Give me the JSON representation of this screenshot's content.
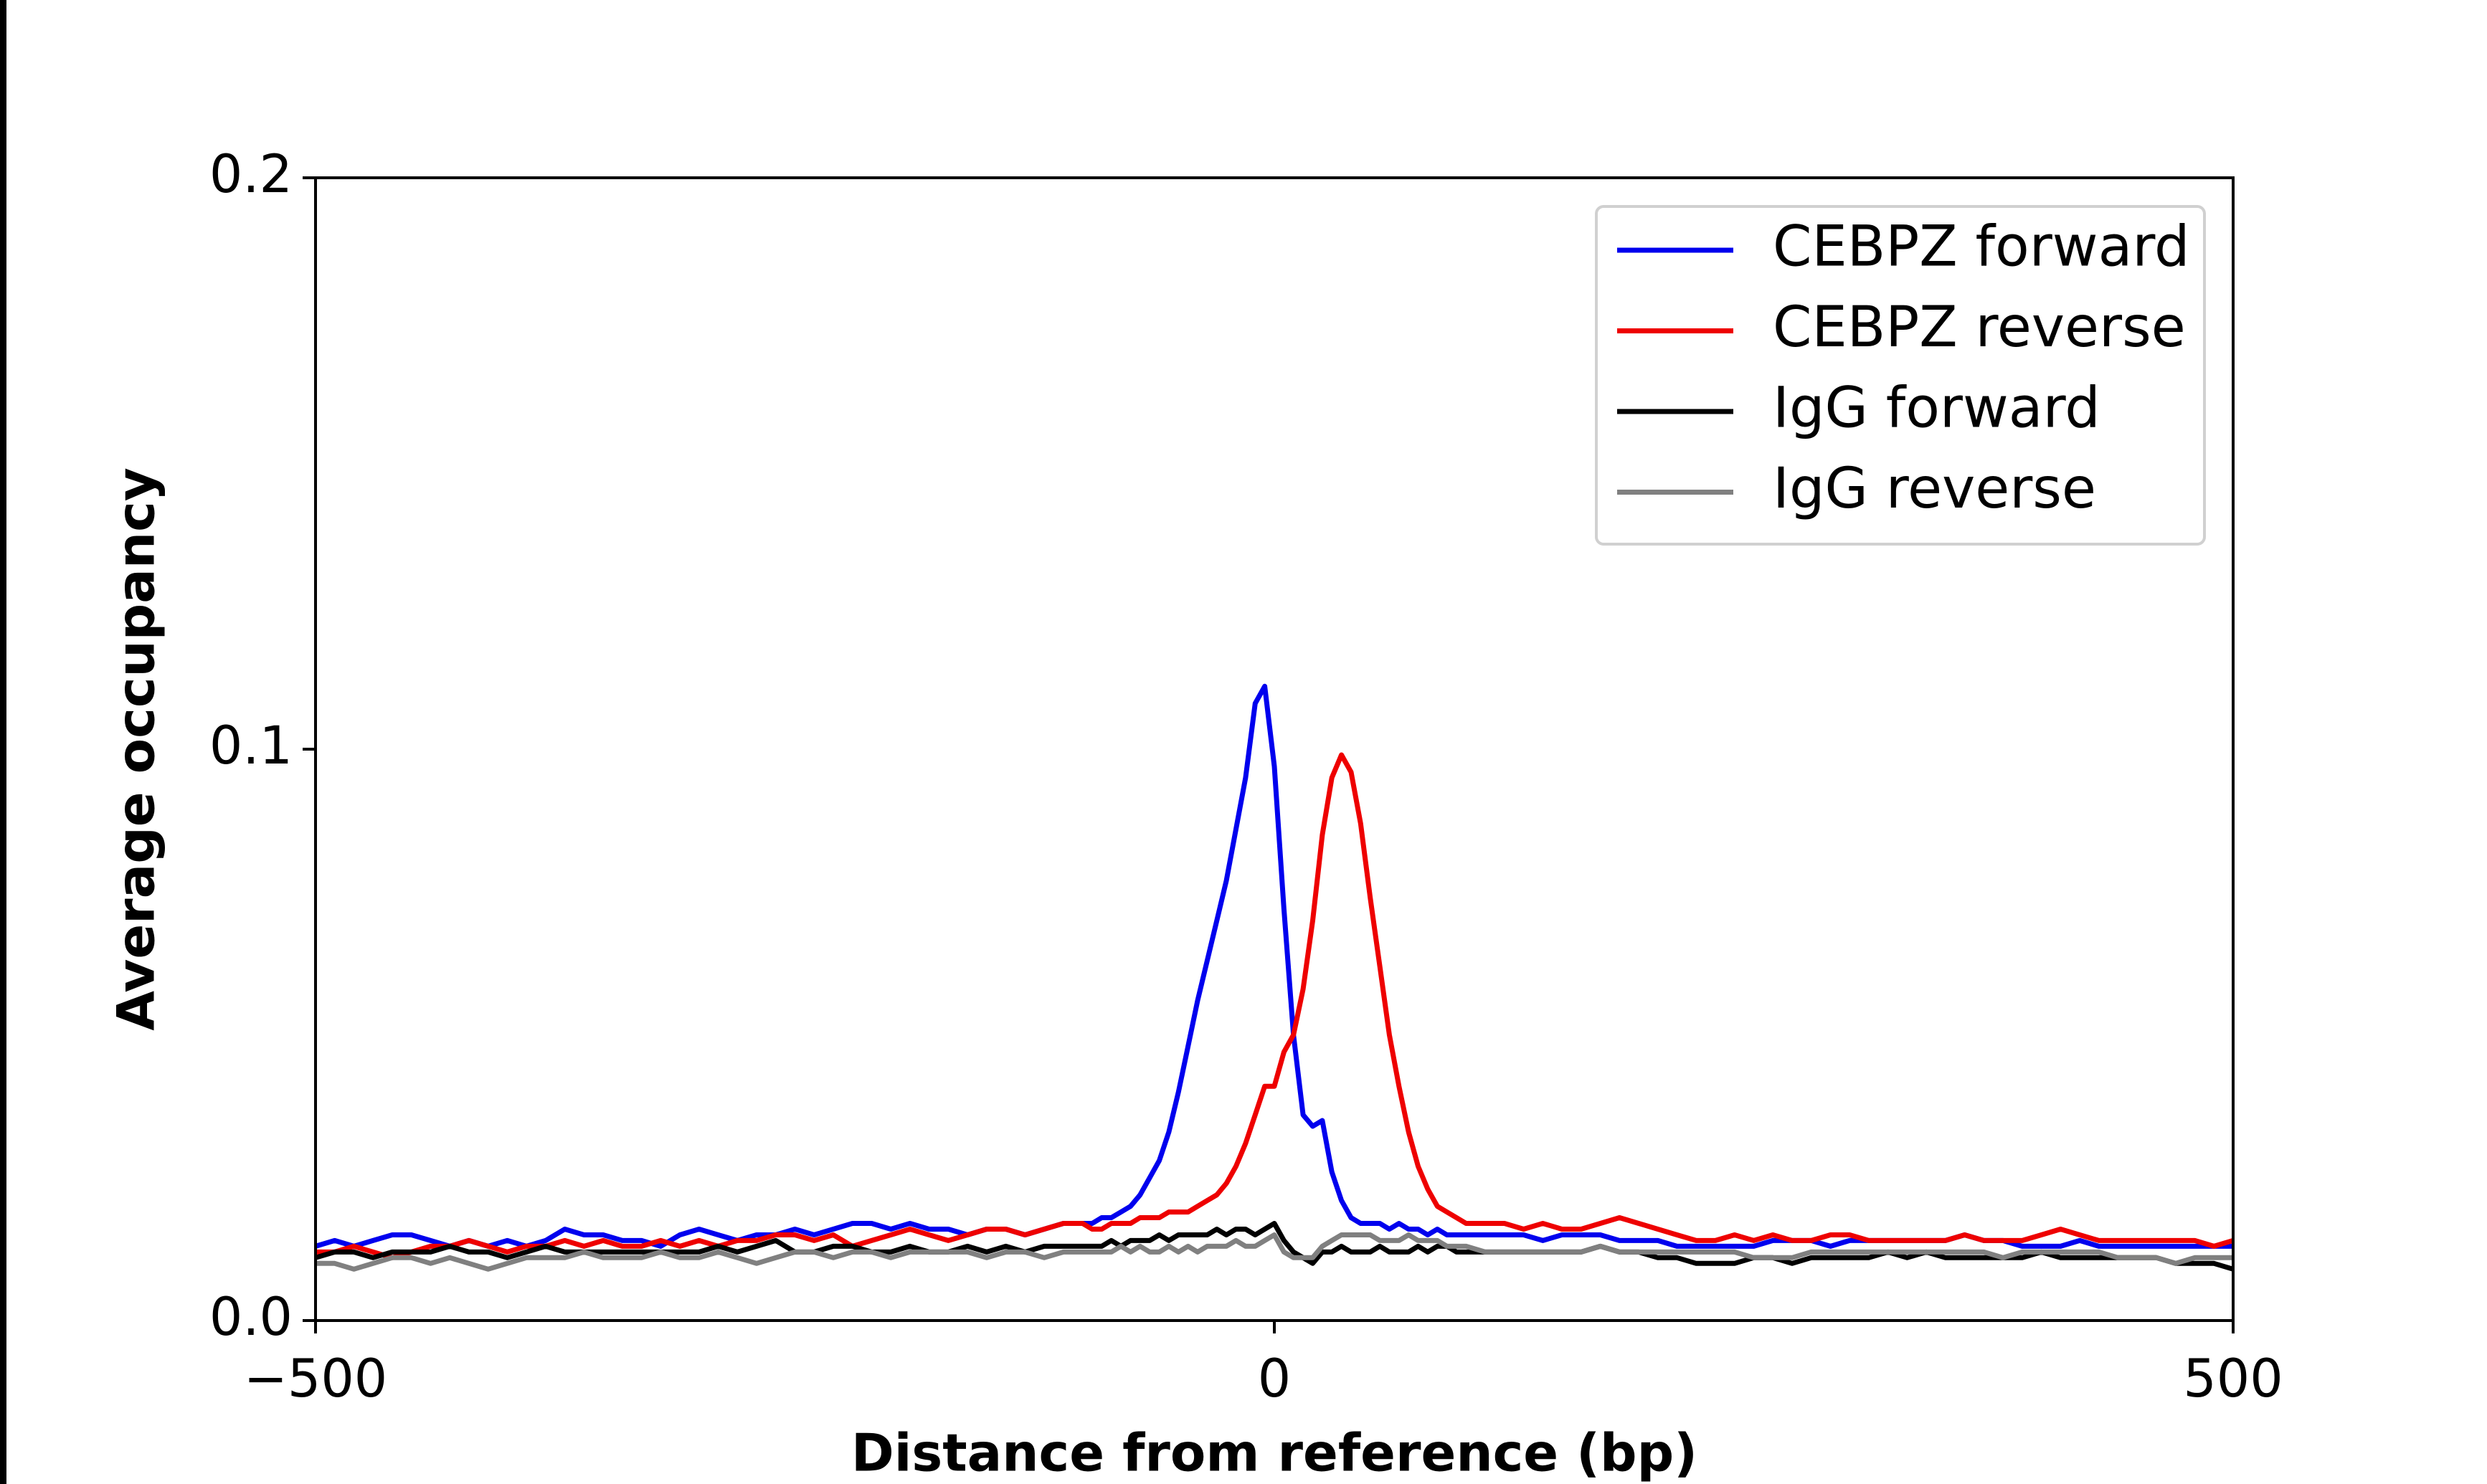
{
  "chart_data": {
    "type": "line",
    "xlabel": "Distance from reference (bp)",
    "ylabel": "Average occupancy",
    "x": [
      -500,
      -490,
      -480,
      -470,
      -460,
      -450,
      -440,
      -430,
      -420,
      -410,
      -400,
      -390,
      -380,
      -370,
      -360,
      -350,
      -340,
      -330,
      -320,
      -310,
      -300,
      -290,
      -280,
      -270,
      -260,
      -250,
      -240,
      -230,
      -220,
      -210,
      -200,
      -190,
      -180,
      -170,
      -160,
      -150,
      -140,
      -130,
      -120,
      -110,
      -100,
      -95,
      -90,
      -85,
      -80,
      -75,
      -70,
      -65,
      -60,
      -55,
      -50,
      -45,
      -40,
      -35,
      -30,
      -25,
      -20,
      -15,
      -10,
      -5,
      0,
      5,
      10,
      15,
      20,
      25,
      30,
      35,
      40,
      45,
      50,
      55,
      60,
      65,
      70,
      75,
      80,
      85,
      90,
      95,
      100,
      110,
      120,
      130,
      140,
      150,
      160,
      170,
      180,
      190,
      200,
      210,
      220,
      230,
      240,
      250,
      260,
      270,
      280,
      290,
      300,
      310,
      320,
      330,
      340,
      350,
      360,
      370,
      380,
      390,
      400,
      410,
      420,
      430,
      440,
      450,
      460,
      470,
      480,
      490,
      500
    ],
    "series": [
      {
        "name": "CEBPZ forward",
        "color": "#0000ee",
        "values": [
          0.013,
          0.014,
          0.013,
          0.014,
          0.015,
          0.015,
          0.014,
          0.013,
          0.014,
          0.013,
          0.014,
          0.013,
          0.014,
          0.016,
          0.015,
          0.015,
          0.014,
          0.014,
          0.013,
          0.015,
          0.016,
          0.015,
          0.014,
          0.015,
          0.015,
          0.016,
          0.015,
          0.016,
          0.017,
          0.017,
          0.016,
          0.017,
          0.016,
          0.016,
          0.015,
          0.016,
          0.016,
          0.015,
          0.016,
          0.017,
          0.017,
          0.017,
          0.018,
          0.018,
          0.019,
          0.02,
          0.022,
          0.025,
          0.028,
          0.033,
          0.04,
          0.048,
          0.056,
          0.063,
          0.07,
          0.077,
          0.086,
          0.095,
          0.108,
          0.111,
          0.097,
          0.072,
          0.05,
          0.036,
          0.034,
          0.035,
          0.026,
          0.021,
          0.018,
          0.017,
          0.017,
          0.017,
          0.016,
          0.017,
          0.016,
          0.016,
          0.015,
          0.016,
          0.015,
          0.015,
          0.015,
          0.015,
          0.015,
          0.015,
          0.014,
          0.015,
          0.015,
          0.015,
          0.014,
          0.014,
          0.014,
          0.013,
          0.013,
          0.013,
          0.013,
          0.013,
          0.014,
          0.014,
          0.014,
          0.013,
          0.014,
          0.014,
          0.014,
          0.014,
          0.014,
          0.014,
          0.015,
          0.014,
          0.014,
          0.013,
          0.013,
          0.013,
          0.014,
          0.013,
          0.013,
          0.013,
          0.013,
          0.013,
          0.013,
          0.013,
          0.013
        ]
      },
      {
        "name": "CEBPZ reverse",
        "color": "#ee0000",
        "values": [
          0.012,
          0.012,
          0.013,
          0.012,
          0.011,
          0.012,
          0.013,
          0.013,
          0.014,
          0.013,
          0.012,
          0.013,
          0.013,
          0.014,
          0.013,
          0.014,
          0.013,
          0.013,
          0.014,
          0.013,
          0.014,
          0.013,
          0.014,
          0.014,
          0.015,
          0.015,
          0.014,
          0.015,
          0.013,
          0.014,
          0.015,
          0.016,
          0.015,
          0.014,
          0.015,
          0.016,
          0.016,
          0.015,
          0.016,
          0.017,
          0.017,
          0.016,
          0.016,
          0.017,
          0.017,
          0.017,
          0.018,
          0.018,
          0.018,
          0.019,
          0.019,
          0.019,
          0.02,
          0.021,
          0.022,
          0.024,
          0.027,
          0.031,
          0.036,
          0.041,
          0.041,
          0.047,
          0.05,
          0.058,
          0.07,
          0.085,
          0.095,
          0.099,
          0.096,
          0.087,
          0.074,
          0.062,
          0.05,
          0.041,
          0.033,
          0.027,
          0.023,
          0.02,
          0.019,
          0.018,
          0.017,
          0.017,
          0.017,
          0.016,
          0.017,
          0.016,
          0.016,
          0.017,
          0.018,
          0.017,
          0.016,
          0.015,
          0.014,
          0.014,
          0.015,
          0.014,
          0.015,
          0.014,
          0.014,
          0.015,
          0.015,
          0.014,
          0.014,
          0.014,
          0.014,
          0.014,
          0.015,
          0.014,
          0.014,
          0.014,
          0.015,
          0.016,
          0.015,
          0.014,
          0.014,
          0.014,
          0.014,
          0.014,
          0.014,
          0.013,
          0.014
        ]
      },
      {
        "name": "IgG forward",
        "color": "#000000",
        "values": [
          0.011,
          0.012,
          0.012,
          0.011,
          0.012,
          0.012,
          0.012,
          0.013,
          0.012,
          0.012,
          0.011,
          0.012,
          0.013,
          0.012,
          0.012,
          0.012,
          0.012,
          0.012,
          0.012,
          0.012,
          0.012,
          0.013,
          0.012,
          0.013,
          0.014,
          0.012,
          0.012,
          0.013,
          0.013,
          0.012,
          0.012,
          0.013,
          0.012,
          0.012,
          0.013,
          0.012,
          0.013,
          0.012,
          0.013,
          0.013,
          0.013,
          0.013,
          0.013,
          0.014,
          0.013,
          0.014,
          0.014,
          0.014,
          0.015,
          0.014,
          0.015,
          0.015,
          0.015,
          0.015,
          0.016,
          0.015,
          0.016,
          0.016,
          0.015,
          0.016,
          0.017,
          0.014,
          0.012,
          0.011,
          0.01,
          0.012,
          0.012,
          0.013,
          0.012,
          0.012,
          0.012,
          0.013,
          0.012,
          0.012,
          0.012,
          0.013,
          0.012,
          0.013,
          0.013,
          0.012,
          0.012,
          0.012,
          0.012,
          0.012,
          0.012,
          0.012,
          0.012,
          0.013,
          0.012,
          0.012,
          0.011,
          0.011,
          0.01,
          0.01,
          0.01,
          0.011,
          0.011,
          0.01,
          0.011,
          0.011,
          0.011,
          0.011,
          0.012,
          0.011,
          0.012,
          0.011,
          0.011,
          0.011,
          0.011,
          0.011,
          0.012,
          0.011,
          0.011,
          0.011,
          0.011,
          0.011,
          0.011,
          0.01,
          0.01,
          0.01,
          0.009
        ]
      },
      {
        "name": "IgG reverse",
        "color": "#808080",
        "values": [
          0.01,
          0.01,
          0.009,
          0.01,
          0.011,
          0.011,
          0.01,
          0.011,
          0.01,
          0.009,
          0.01,
          0.011,
          0.011,
          0.011,
          0.012,
          0.011,
          0.011,
          0.011,
          0.012,
          0.011,
          0.011,
          0.012,
          0.011,
          0.01,
          0.011,
          0.012,
          0.012,
          0.011,
          0.012,
          0.012,
          0.011,
          0.012,
          0.012,
          0.012,
          0.012,
          0.011,
          0.012,
          0.012,
          0.011,
          0.012,
          0.012,
          0.012,
          0.012,
          0.012,
          0.013,
          0.012,
          0.013,
          0.012,
          0.012,
          0.013,
          0.012,
          0.013,
          0.012,
          0.013,
          0.013,
          0.013,
          0.014,
          0.013,
          0.013,
          0.014,
          0.015,
          0.012,
          0.011,
          0.011,
          0.011,
          0.013,
          0.014,
          0.015,
          0.015,
          0.015,
          0.015,
          0.014,
          0.014,
          0.014,
          0.015,
          0.014,
          0.014,
          0.014,
          0.013,
          0.013,
          0.013,
          0.012,
          0.012,
          0.012,
          0.012,
          0.012,
          0.012,
          0.013,
          0.012,
          0.012,
          0.012,
          0.012,
          0.012,
          0.012,
          0.012,
          0.011,
          0.011,
          0.011,
          0.012,
          0.012,
          0.012,
          0.012,
          0.012,
          0.012,
          0.012,
          0.012,
          0.012,
          0.012,
          0.011,
          0.012,
          0.012,
          0.012,
          0.012,
          0.012,
          0.011,
          0.011,
          0.011,
          0.01,
          0.011,
          0.011,
          0.011
        ]
      }
    ],
    "xlim": [
      -500,
      500
    ],
    "ylim": [
      0,
      0.2
    ],
    "xticks": [
      {
        "value": -500,
        "label": "−500"
      },
      0,
      500
    ],
    "yticks": [
      {
        "value": 0,
        "label": "0.0"
      },
      0.1,
      0.2
    ],
    "legend": "upper right",
    "grid": false
  }
}
